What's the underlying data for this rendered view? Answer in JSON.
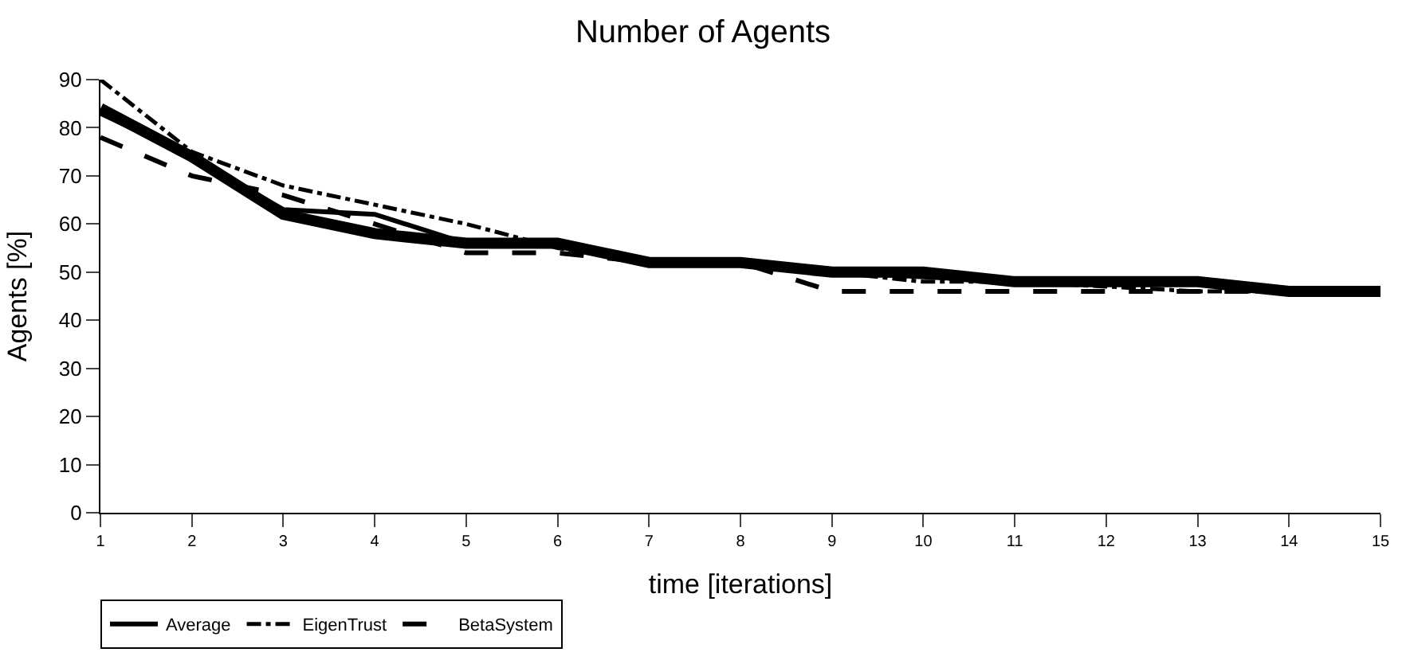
{
  "chart_data": {
    "type": "line",
    "title": "Number of Agents",
    "xlabel": "time [iterations]",
    "ylabel": "Agents [%]",
    "x": [
      1,
      2,
      3,
      4,
      5,
      6,
      7,
      8,
      9,
      10,
      11,
      12,
      13,
      14,
      15
    ],
    "xlim": [
      1,
      15
    ],
    "xticks": [
      1,
      2,
      3,
      4,
      5,
      6,
      7,
      8,
      9,
      10,
      11,
      12,
      13,
      14,
      15
    ],
    "ylim": [
      0,
      90
    ],
    "yticks": [
      0,
      10,
      20,
      30,
      40,
      50,
      60,
      70,
      80,
      90
    ],
    "legend": "bottom left",
    "marker": "none",
    "series": [
      {
        "color": "#000000",
        "line_style": "solid",
        "values": [
          84,
          74,
          62,
          58,
          56,
          56,
          52,
          52,
          50,
          50,
          48,
          48,
          48,
          46,
          46
        ]
      },
      {
        "name": "Average",
        "color": "#000000",
        "line_style": "solid",
        "values": [
          83,
          74,
          63,
          62,
          56,
          56,
          52,
          52,
          50,
          49,
          48,
          48,
          48,
          46,
          46
        ]
      },
      {
        "name": "EigenTrust",
        "color": "#000000",
        "line_style": "dashdot",
        "values": [
          90,
          75,
          68,
          64,
          60,
          55,
          52,
          52,
          50,
          48,
          48,
          47,
          46,
          46,
          46
        ]
      },
      {
        "name": "BetaSystem",
        "color": "#000000",
        "line_style": "dashed",
        "values": [
          78,
          70,
          66,
          60,
          54,
          54,
          52,
          52,
          46,
          46,
          46,
          46,
          46,
          46,
          46
        ]
      }
    ]
  }
}
